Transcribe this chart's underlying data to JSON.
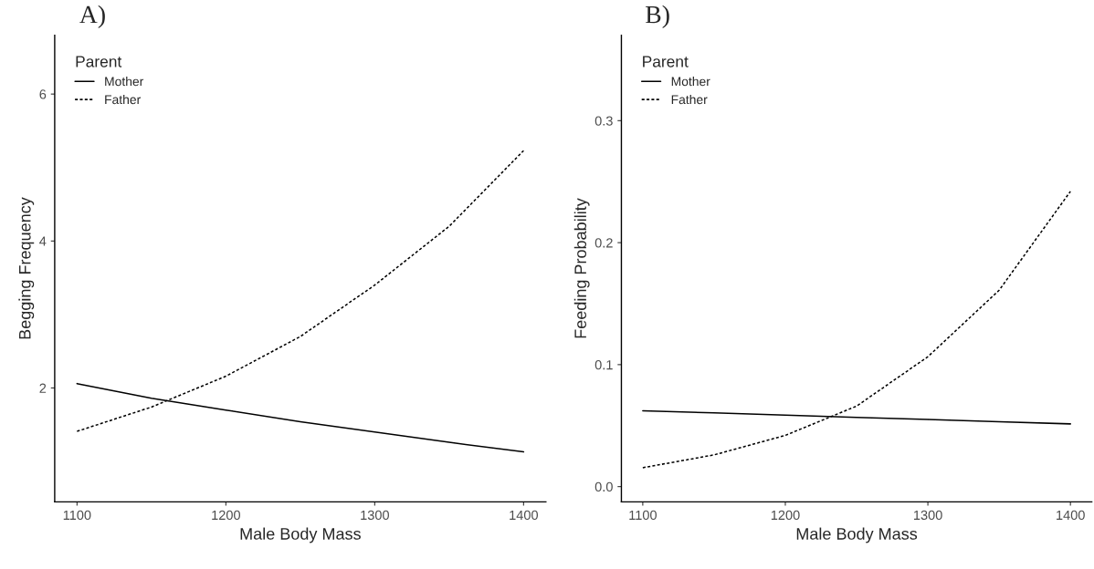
{
  "chart_data": [
    {
      "type": "line",
      "title": "A)",
      "xlabel": "Male Body Mass",
      "ylabel": "Begging Frequency",
      "legend_title": "Parent",
      "legend": "top left",
      "grid": false,
      "x": [
        1100,
        1150,
        1200,
        1250,
        1300,
        1350,
        1400
      ],
      "xlim": [
        1085,
        1415
      ],
      "xticks": [
        1100,
        1200,
        1300,
        1400
      ],
      "ylim": [
        0.45,
        6.8
      ],
      "yticks": [
        2,
        4,
        6
      ],
      "series": [
        {
          "name": "Mother",
          "color": "#000000",
          "line_style": "solid",
          "values": [
            2.06,
            1.86,
            1.7,
            1.54,
            1.4,
            1.26,
            1.13
          ]
        },
        {
          "name": "Father",
          "color": "#000000",
          "line_style": "dotted",
          "values": [
            1.41,
            1.74,
            2.16,
            2.7,
            3.4,
            4.2,
            5.23
          ]
        }
      ]
    },
    {
      "type": "line",
      "title": "B)",
      "xlabel": "Male Body Mass",
      "ylabel": "Feeding Probability",
      "legend_title": "Parent",
      "legend": "top left",
      "grid": false,
      "x": [
        1100,
        1150,
        1200,
        1250,
        1300,
        1350,
        1400
      ],
      "xlim": [
        1085,
        1415
      ],
      "xticks": [
        1100,
        1200,
        1300,
        1400
      ],
      "ylim": [
        -0.0125,
        0.37
      ],
      "yticks": [
        {
          "value": 0,
          "label": "0.0"
        },
        0.1,
        0.2,
        0.3
      ],
      "series": [
        {
          "name": "Mother",
          "color": "#000000",
          "line_style": "solid",
          "values": [
            0.0622,
            0.0604,
            0.0586,
            0.0568,
            0.055,
            0.0532,
            0.0514
          ]
        },
        {
          "name": "Father",
          "color": "#000000",
          "line_style": "dotted",
          "values": [
            0.0155,
            0.026,
            0.042,
            0.066,
            0.1065,
            0.161,
            0.242
          ]
        }
      ]
    }
  ]
}
